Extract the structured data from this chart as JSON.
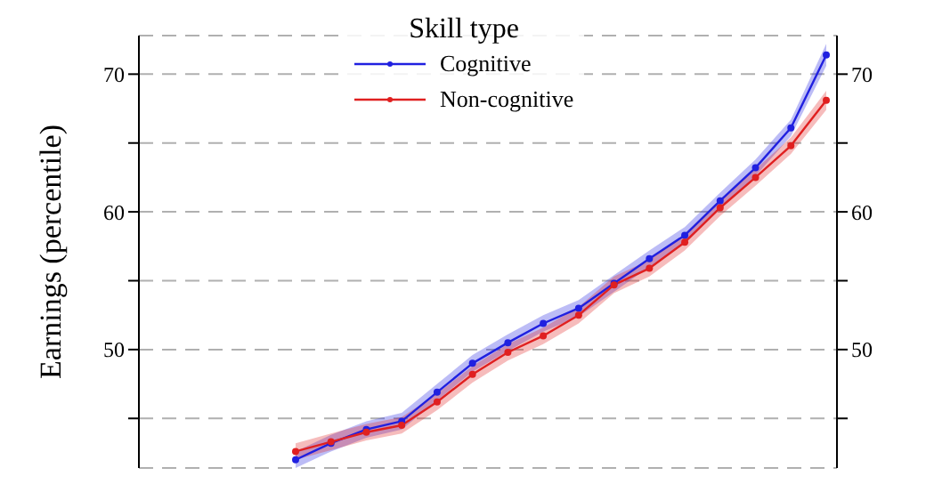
{
  "chart_data": {
    "type": "line",
    "ylabel": "Earnings (percentile)",
    "legend_title": "Skill type",
    "categories": [
      null,
      null,
      null,
      null,
      null,
      null,
      null,
      null,
      null,
      null,
      null,
      null,
      null,
      null,
      null,
      null
    ],
    "series": [
      {
        "name": "Cognitive",
        "color": "#2020e0",
        "values": [
          42.0,
          43.2,
          44.2,
          44.8,
          46.9,
          49.0,
          50.5,
          51.9,
          53.0,
          54.8,
          56.6,
          58.3,
          60.8,
          63.2,
          66.1,
          71.4
        ],
        "lower": [
          41.4,
          42.6,
          43.6,
          44.2,
          46.3,
          48.4,
          49.9,
          51.3,
          52.4,
          54.2,
          56.0,
          57.7,
          60.2,
          62.6,
          65.5,
          70.6
        ],
        "upper": [
          42.6,
          43.8,
          44.8,
          45.4,
          47.5,
          49.6,
          51.1,
          52.5,
          53.6,
          55.4,
          57.2,
          58.9,
          61.4,
          63.8,
          66.7,
          72.2
        ]
      },
      {
        "name": "Non-cognitive",
        "color": "#e02020",
        "values": [
          42.6,
          43.3,
          44.0,
          44.5,
          46.2,
          48.2,
          49.8,
          51.0,
          52.5,
          54.7,
          55.9,
          57.8,
          60.3,
          62.5,
          64.8,
          68.1
        ],
        "lower": [
          42.0,
          42.7,
          43.4,
          43.9,
          45.6,
          47.6,
          49.2,
          50.4,
          51.9,
          54.1,
          55.3,
          57.2,
          59.7,
          61.9,
          64.2,
          67.4
        ],
        "upper": [
          43.2,
          43.9,
          44.6,
          45.1,
          46.8,
          48.8,
          50.4,
          51.6,
          53.1,
          55.3,
          56.5,
          58.4,
          60.9,
          63.1,
          65.4,
          68.8
        ]
      }
    ],
    "ylim": [
      41.4,
      72.8
    ],
    "yticks": [
      {
        "value": 45,
        "label": null
      },
      50,
      {
        "value": 55,
        "label": null
      },
      60,
      {
        "value": 65,
        "label": null
      },
      70
    ],
    "y2lim": [
      41.4,
      72.8
    ],
    "y2ticks": [
      {
        "value": 45,
        "label": null
      },
      50,
      {
        "value": 55,
        "label": null
      },
      60,
      {
        "value": 65,
        "label": null
      },
      70
    ],
    "tick_labels": "y",
    "grid": true,
    "legend": "top",
    "marker": "circle",
    "line_style": "solid"
  }
}
